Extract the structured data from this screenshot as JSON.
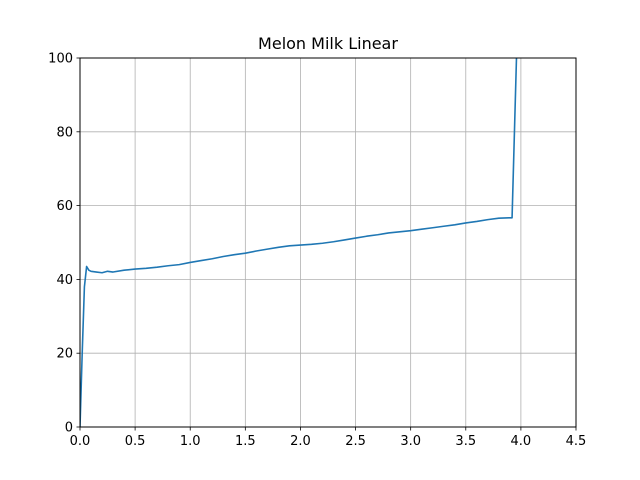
{
  "chart_data": {
    "type": "line",
    "title": "Melon Milk Linear",
    "xlabel": "",
    "ylabel": "",
    "xlim": [
      0,
      4.5
    ],
    "ylim": [
      0,
      100
    ],
    "xticks": [
      0.0,
      0.5,
      1.0,
      1.5,
      2.0,
      2.5,
      3.0,
      3.5,
      4.0,
      4.5
    ],
    "xtick_labels": [
      "0.0",
      "0.5",
      "1.0",
      "1.5",
      "2.0",
      "2.5",
      "3.0",
      "3.5",
      "4.0",
      "4.5"
    ],
    "yticks": [
      0,
      20,
      40,
      60,
      80,
      100
    ],
    "ytick_labels": [
      "0",
      "20",
      "40",
      "60",
      "80",
      "100"
    ],
    "grid": true,
    "series": [
      {
        "color": "#1f77b4",
        "x": [
          0.0,
          0.02,
          0.04,
          0.06,
          0.08,
          0.1,
          0.15,
          0.2,
          0.25,
          0.3,
          0.4,
          0.5,
          0.6,
          0.7,
          0.8,
          0.9,
          1.0,
          1.1,
          1.2,
          1.3,
          1.4,
          1.5,
          1.6,
          1.7,
          1.8,
          1.9,
          2.0,
          2.1,
          2.2,
          2.3,
          2.4,
          2.5,
          2.6,
          2.7,
          2.8,
          2.9,
          3.0,
          3.1,
          3.2,
          3.3,
          3.4,
          3.5,
          3.6,
          3.7,
          3.8,
          3.9,
          3.92,
          3.96
        ],
        "y": [
          0,
          20,
          38,
          43.5,
          42.5,
          42.2,
          42.0,
          41.8,
          42.2,
          42.0,
          42.5,
          42.8,
          43.0,
          43.3,
          43.7,
          44.0,
          44.6,
          45.1,
          45.6,
          46.2,
          46.7,
          47.1,
          47.7,
          48.2,
          48.7,
          49.1,
          49.3,
          49.5,
          49.8,
          50.2,
          50.7,
          51.2,
          51.7,
          52.1,
          52.6,
          52.9,
          53.2,
          53.6,
          54.0,
          54.4,
          54.8,
          55.3,
          55.7,
          56.2,
          56.6,
          56.7,
          56.7,
          100
        ]
      }
    ]
  }
}
